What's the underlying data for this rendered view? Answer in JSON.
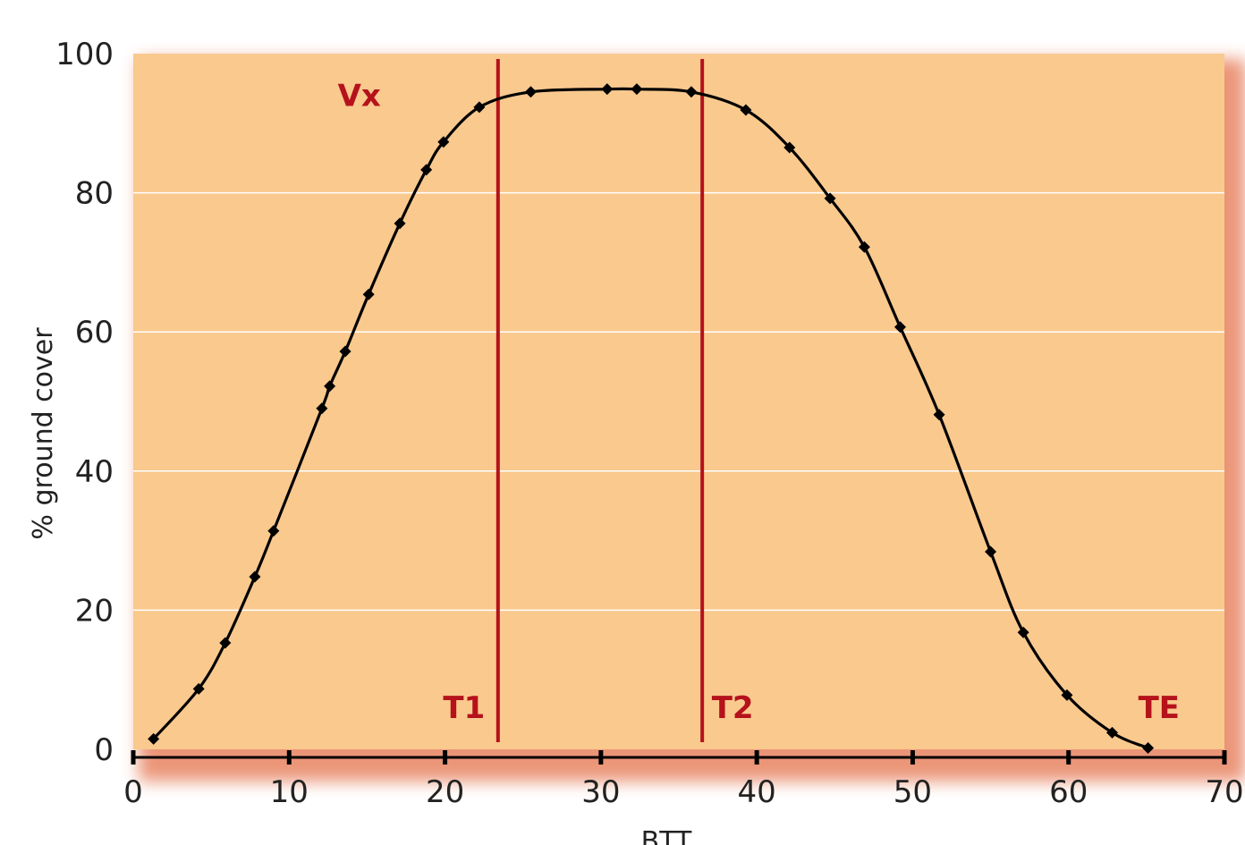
{
  "chart_data": {
    "type": "line",
    "xlabel": "BTT",
    "ylabel": "% ground cover",
    "xlim": [
      0,
      70
    ],
    "ylim": [
      0,
      100
    ],
    "x_ticks": [
      "0",
      "10",
      "20",
      "30",
      "40",
      "50",
      "60",
      "70"
    ],
    "y_ticks": [
      "0",
      "20",
      "40",
      "60",
      "80",
      "100"
    ],
    "grid": "horizontal",
    "series": [
      {
        "x": [
          1.3,
          4.2,
          5.9,
          7.8,
          9.0,
          12.1,
          12.6,
          13.6,
          15.1,
          17.1,
          18.8,
          19.9,
          22.2,
          25.5,
          30.4,
          32.3,
          35.8,
          39.3,
          42.1,
          44.7,
          46.9,
          49.2,
          51.7,
          55.0,
          57.1,
          59.9,
          62.8,
          65.1
        ],
        "y": [
          1.5,
          8.7,
          15.3,
          24.8,
          31.4,
          49.0,
          52.2,
          57.2,
          65.4,
          75.6,
          83.3,
          87.3,
          92.3,
          94.5,
          94.9,
          94.9,
          94.5,
          91.9,
          86.5,
          79.2,
          72.2,
          60.7,
          48.1,
          28.4,
          16.8,
          7.8,
          2.4,
          0.2
        ]
      }
    ],
    "markers": [
      {
        "label": "T1",
        "x": 23.4
      },
      {
        "label": "T2",
        "x": 36.5
      }
    ],
    "annotations": [
      {
        "label": "Vx",
        "x": 14.5,
        "y": 92.5
      },
      {
        "label": "TE",
        "x": 65.8,
        "y": 4.5
      }
    ],
    "colors": {
      "plot_background": "#f9c98e",
      "line": "#000000",
      "marker_line": "#b5121b",
      "annotation_text": "#b5121b",
      "gridline": "#ffffff",
      "shadow": "#e98a6b"
    }
  }
}
